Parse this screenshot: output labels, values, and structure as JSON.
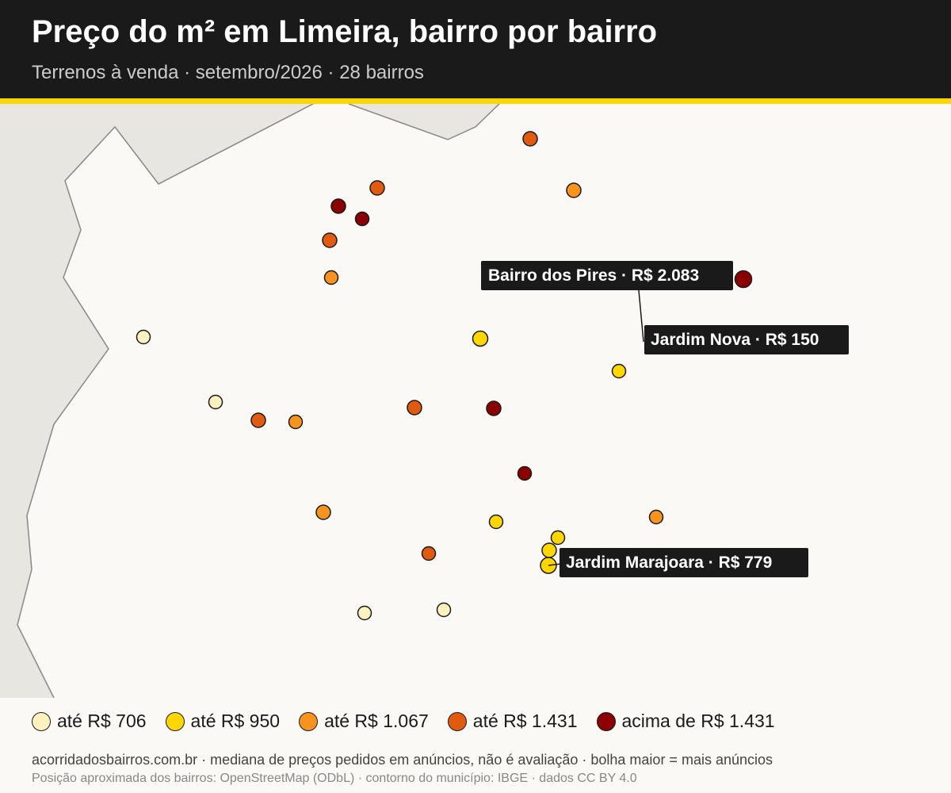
{
  "title": "Preço do m² em Limeira, bairro por bairro",
  "subtitle": "Terrenos à venda · setembro/2026 · 28 bairros",
  "colors": {
    "header_bg": "#1a1a1a",
    "accent": "#ffd600",
    "land": "#faf9f6",
    "outside": "#e8e6e0",
    "border": "#888888"
  },
  "legend": [
    {
      "label": "até R$ 706",
      "color": "#fff2bf"
    },
    {
      "label": "até R$ 950",
      "color": "#ffd600"
    },
    {
      "label": "até R$ 1.067",
      "color": "#f7931e"
    },
    {
      "label": "até R$ 1.431",
      "color": "#e05a10"
    },
    {
      "label": "acima de R$ 1.431",
      "color": "#8b0000"
    }
  ],
  "callouts": [
    {
      "text": "Bairro dos Pires · R$ 2.083"
    },
    {
      "text": "Jardim Nova · R$ 150"
    },
    {
      "text": "Jardim Marajoara · R$ 779"
    }
  ],
  "footer": {
    "line1": "acorridadosbairros.com.br · mediana de preços pedidos em anúncios, não é avaliação · bolha maior = mais anúncios",
    "line2": "Posição aproximada dos bairros: OpenStreetMap (ODbL) · contorno do município: IBGE · dados CC BY 4.0"
  }
}
